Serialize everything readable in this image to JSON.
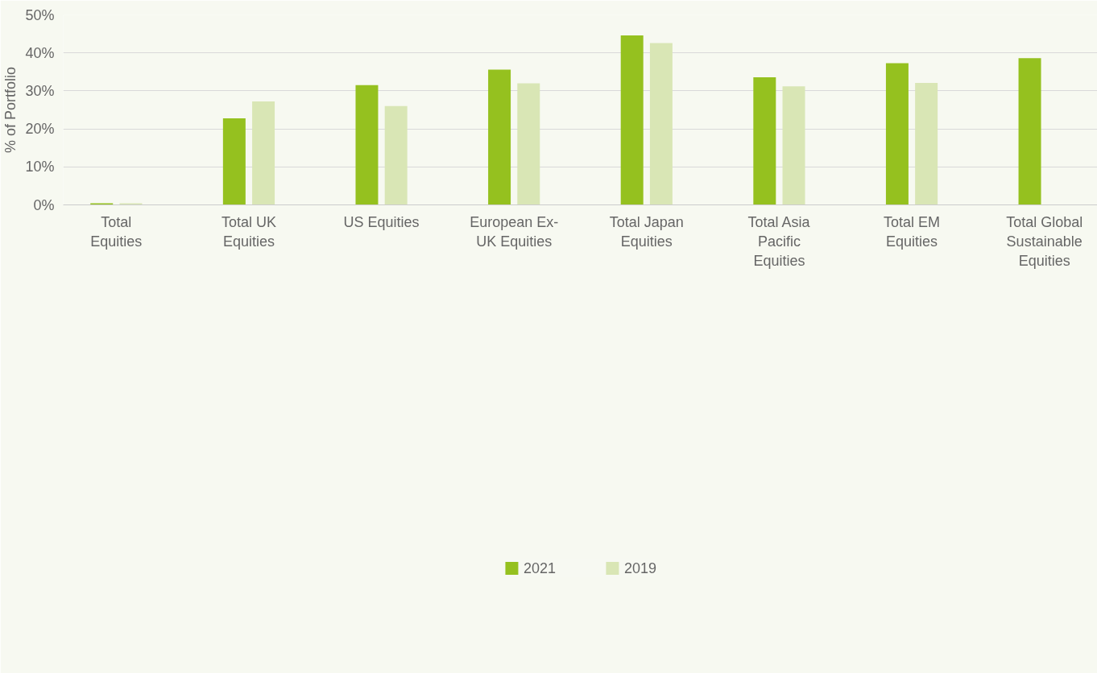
{
  "chart_data": {
    "type": "bar",
    "ylabel": "% of Portfolio",
    "categories": [
      "Total Equities",
      "Total UK Equities",
      "US Equities",
      "European Ex-UK Equities",
      "Total Japan Equities",
      "Total Asia Pacific Equities",
      "Total EM Equities",
      "Total Global Sustainable Equities"
    ],
    "series": [
      {
        "name": "2021",
        "color": "#95c11f",
        "values": [
          0.4,
          22.8,
          31.5,
          35.6,
          44.6,
          33.6,
          37.3,
          38.6
        ]
      },
      {
        "name": "2019",
        "color": "#d9e6b5",
        "values": [
          0.4,
          27.2,
          26.0,
          32.0,
          42.6,
          31.2,
          32.1,
          null
        ]
      }
    ],
    "ylim": [
      0,
      50
    ],
    "yticks": [
      {
        "value": 0,
        "label": "0%"
      },
      {
        "value": 10,
        "label": "10%"
      },
      {
        "value": 20,
        "label": "20%"
      },
      {
        "value": 30,
        "label": "30%"
      },
      {
        "value": 40,
        "label": "40%"
      },
      {
        "value": 50,
        "label": "50%"
      }
    ],
    "grid": "y",
    "legend": "bottom"
  }
}
